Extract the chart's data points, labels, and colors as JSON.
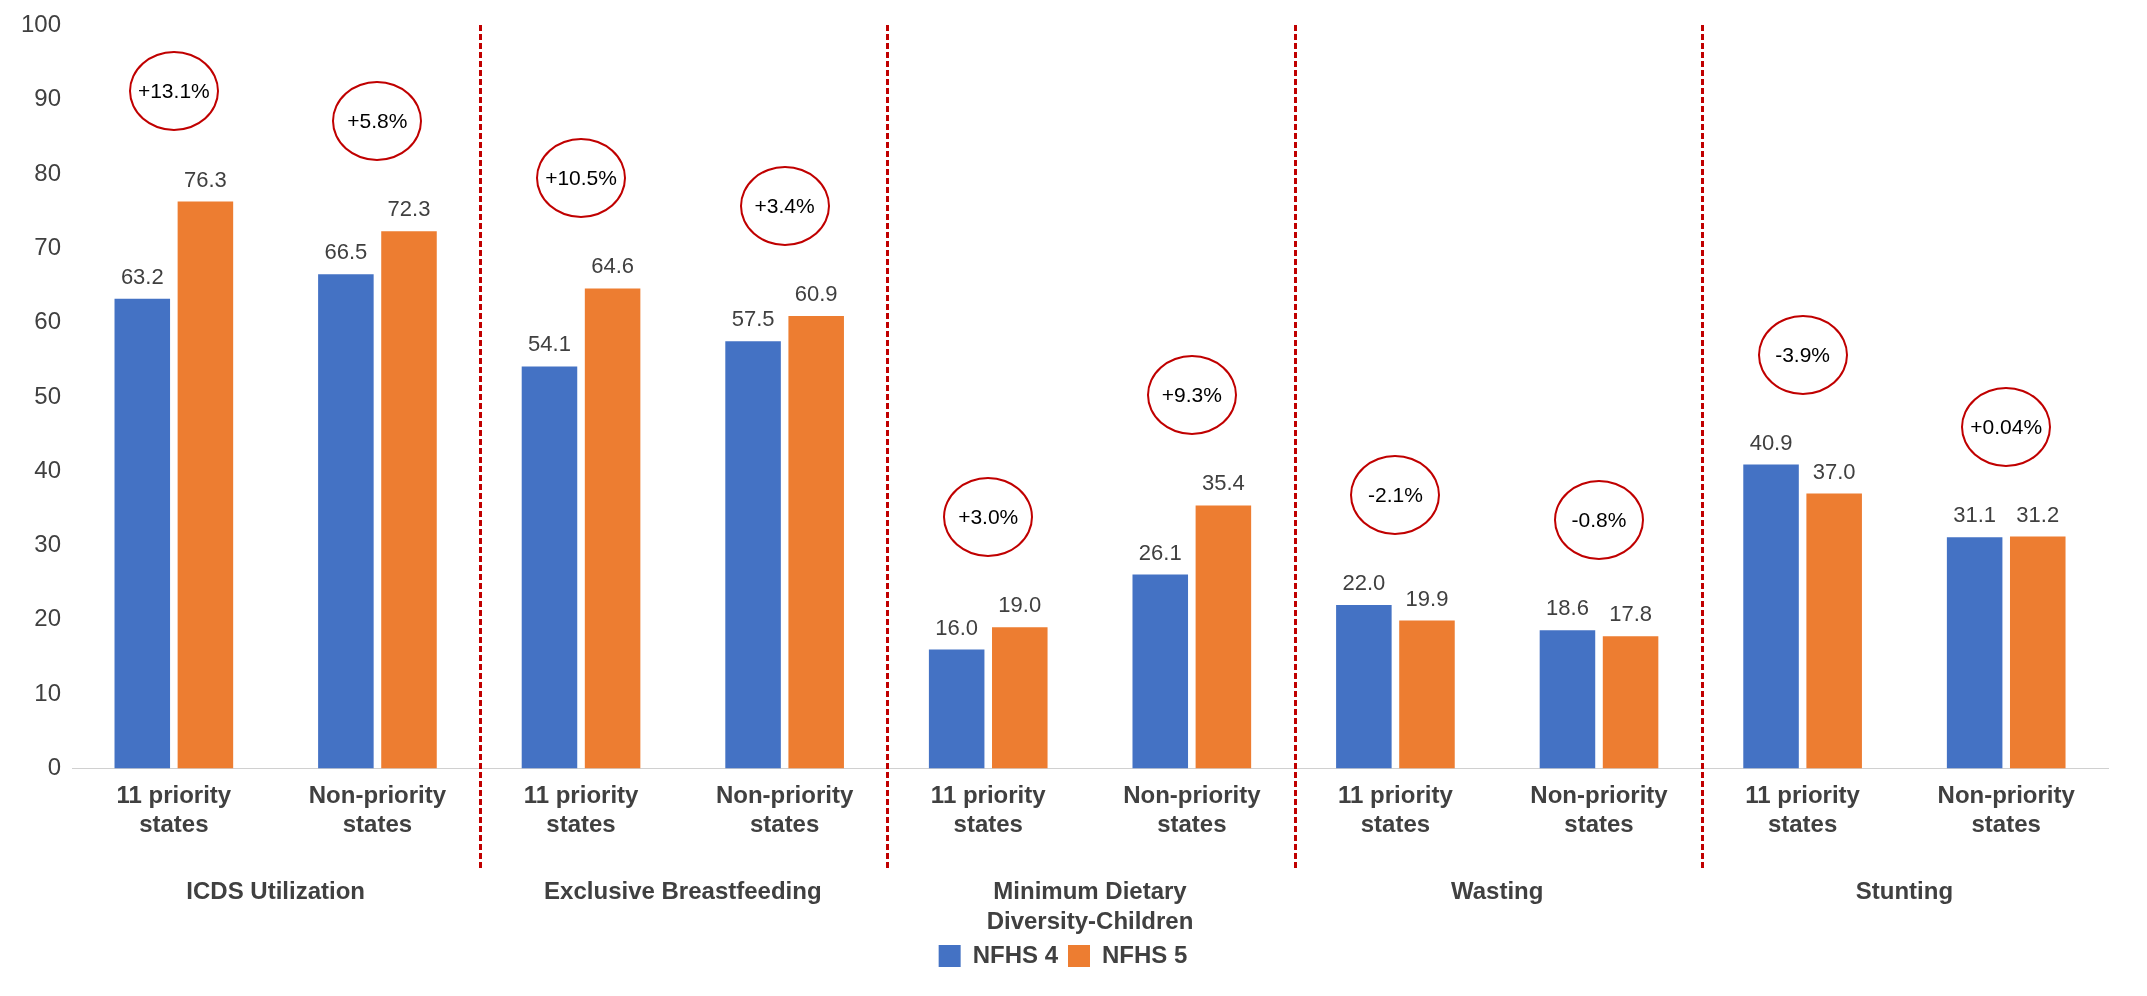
{
  "chart_data": {
    "type": "bar",
    "categories": [
      "11 priority states",
      "Non-priority states",
      "11 priority states",
      "Non-priority states",
      "11 priority states",
      "Non-priority states",
      "11 priority states",
      "Non-priority states",
      "11 priority states",
      "Non-priority states"
    ],
    "series": [
      {
        "name": "NFHS 4",
        "color": "#4472c4",
        "values": [
          63.2,
          66.5,
          54.1,
          57.5,
          16.0,
          26.1,
          22.0,
          18.6,
          40.9,
          31.1
        ],
        "value_labels": [
          "63.2",
          "66.5",
          "54.1",
          "57.5",
          "16.0",
          "26.1",
          "22.0",
          "18.6",
          "40.9",
          "31.1"
        ]
      },
      {
        "name": "NFHS 5",
        "color": "#ed7d31",
        "values": [
          76.3,
          72.3,
          64.6,
          60.9,
          19.0,
          35.4,
          19.9,
          17.8,
          37.0,
          31.2
        ],
        "value_labels": [
          "76.3",
          "72.3",
          "64.6",
          "60.9",
          "19.0",
          "35.4",
          "19.9",
          "17.8",
          "37.0",
          "31.2"
        ]
      }
    ],
    "annotations": [
      "ICDS Utilization",
      "Exclusive Breastfeeding",
      "Minimum Dietary Diversity-Children",
      "Wasting",
      "Stunting",
      "+13.1%",
      "+5.8%",
      "+10.5%",
      "+3.4%",
      "+3.0%",
      "+9.3%",
      "-2.1%",
      "-0.8%",
      "-3.9%",
      "+0.04%"
    ],
    "ylim": [
      0,
      100
    ],
    "yticks": [
      0,
      10,
      20,
      30,
      40,
      50,
      60,
      70,
      80,
      90,
      100
    ],
    "grid": false,
    "legend": "bottom"
  }
}
